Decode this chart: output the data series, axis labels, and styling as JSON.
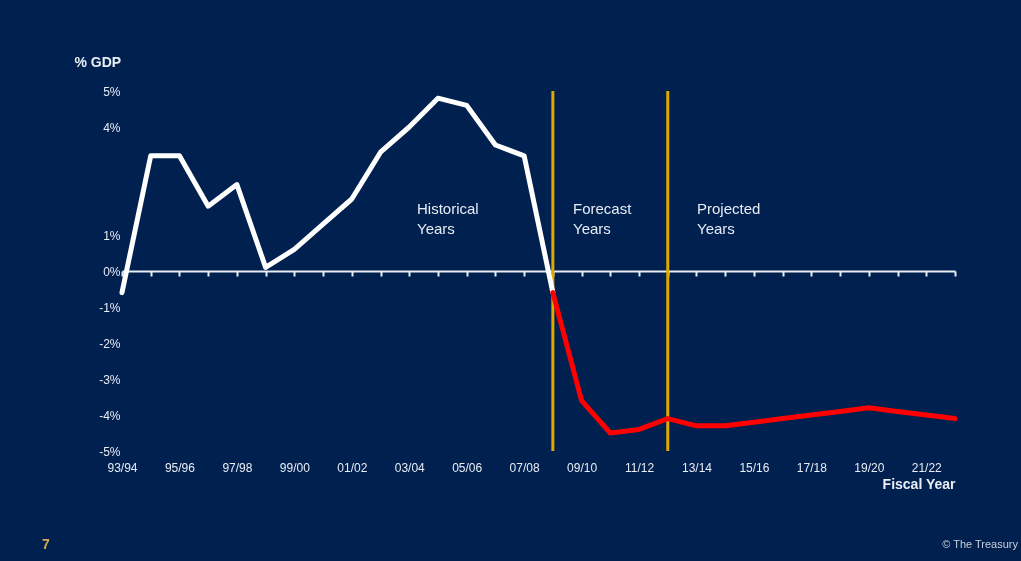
{
  "chart_data": {
    "type": "line",
    "ylabel": "% GDP",
    "xlabel": "Fiscal Year",
    "categories": [
      "93/94",
      null,
      "95/96",
      null,
      "97/98",
      null,
      "99/00",
      null,
      "01/02",
      null,
      "03/04",
      null,
      "05/06",
      null,
      "07/08",
      null,
      "09/10",
      null,
      "11/12",
      null,
      "13/14",
      null,
      "15/16",
      null,
      "17/18",
      null,
      "19/20",
      null,
      "21/22",
      null
    ],
    "ylim": [
      -5,
      5
    ],
    "yticks": [
      {
        "value": 5,
        "label": "5%"
      },
      {
        "value": 4,
        "label": "4%"
      },
      {
        "value": 1,
        "label": "1%"
      },
      {
        "value": 0,
        "label": "0%"
      },
      {
        "value": -1,
        "label": "-1%"
      },
      {
        "value": -2,
        "label": "-2%"
      },
      {
        "value": -3,
        "label": "-3%"
      },
      {
        "value": -4,
        "label": "-4%"
      },
      {
        "value": -5,
        "label": "-5%"
      }
    ],
    "series": [
      {
        "color": "#ffffff",
        "values": [
          -0.6,
          3.2,
          3.2,
          1.8,
          2.4,
          0.1,
          0.6,
          1.3,
          2.0,
          3.3,
          4.0,
          4.8,
          4.6,
          3.5,
          3.2,
          -0.6,
          null,
          null,
          null,
          null,
          null,
          null,
          null,
          null,
          null,
          null,
          null,
          null,
          null,
          null
        ]
      },
      {
        "color": "#ff0000",
        "values": [
          null,
          null,
          null,
          null,
          null,
          null,
          null,
          null,
          null,
          null,
          null,
          null,
          null,
          null,
          null,
          -0.6,
          -3.6,
          -4.5,
          -4.4,
          -4.1,
          -4.3,
          -4.3,
          -4.2,
          -4.1,
          -4.0,
          -3.9,
          -3.8,
          -3.9,
          -4.0,
          -4.1
        ]
      }
    ],
    "annotations": [
      "Historical Years",
      "Forecast Years",
      "Projected Years",
      "7",
      "© The Treasury"
    ]
  }
}
